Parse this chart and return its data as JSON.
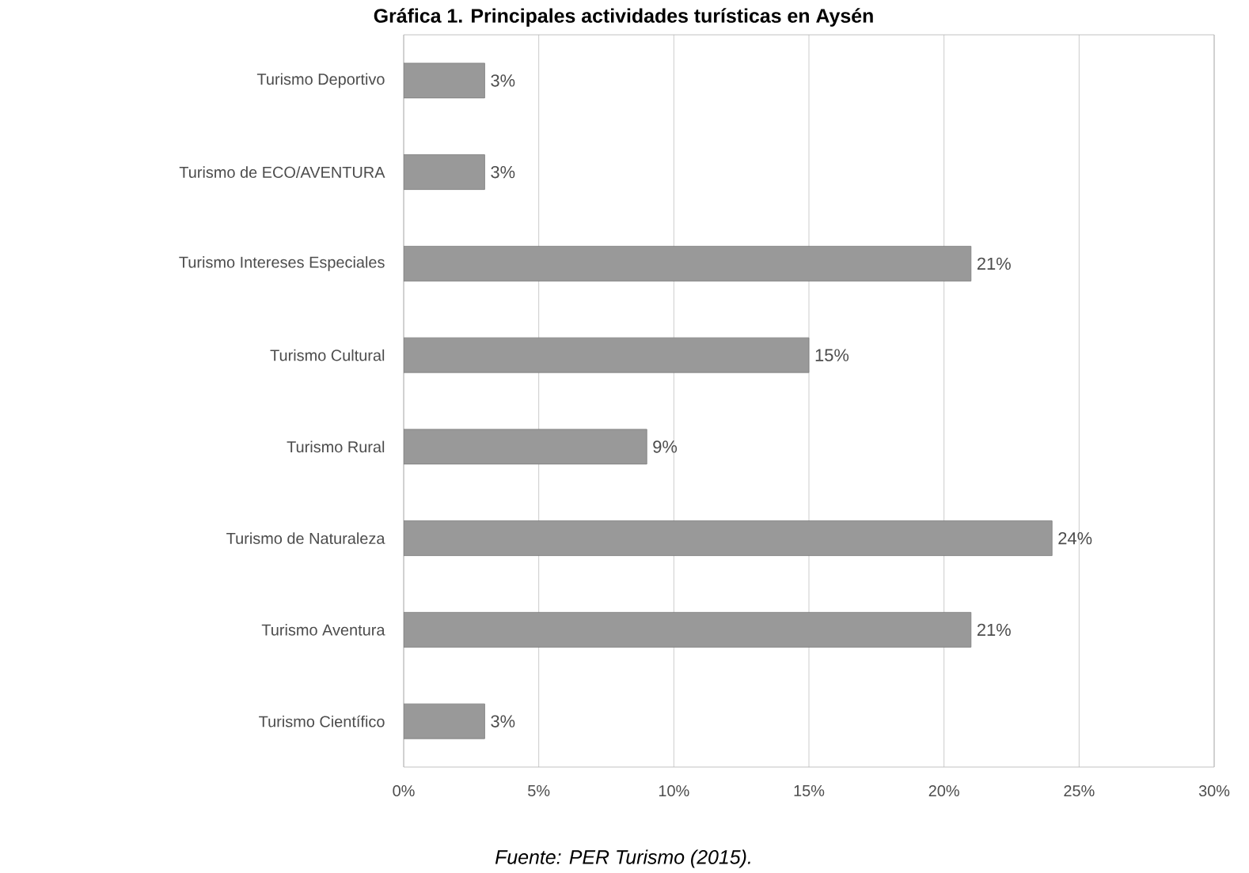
{
  "chart_data": {
    "type": "bar",
    "orientation": "horizontal",
    "title": "Gráfica 1. Principales actividades turísticas en Aysén",
    "categories": [
      "Turismo Deportivo",
      "Turismo de ECO/AVENTURA",
      "Turismo Intereses Especiales",
      "Turismo Cultural",
      "Turismo Rural",
      "Turismo de Naturaleza",
      "Turismo Aventura",
      "Turismo Científico"
    ],
    "values": [
      3,
      3,
      21,
      15,
      9,
      24,
      21,
      3
    ],
    "value_labels": [
      "3%",
      "3%",
      "21%",
      "15%",
      "9%",
      "24%",
      "21%",
      "3%"
    ],
    "color": "#999999",
    "xlim": [
      0,
      30
    ],
    "xticks": [
      {
        "value": 0,
        "label": "0%"
      },
      {
        "value": 5,
        "label": "5%"
      },
      {
        "value": 10,
        "label": "10%"
      },
      {
        "value": 15,
        "label": "15%"
      },
      {
        "value": 20,
        "label": "20%"
      },
      {
        "value": 25,
        "label": "25%"
      },
      {
        "value": 30,
        "label": "30%"
      }
    ],
    "grid": "x",
    "annotations": [
      "Fuente: PER Turismo (2015)."
    ]
  }
}
